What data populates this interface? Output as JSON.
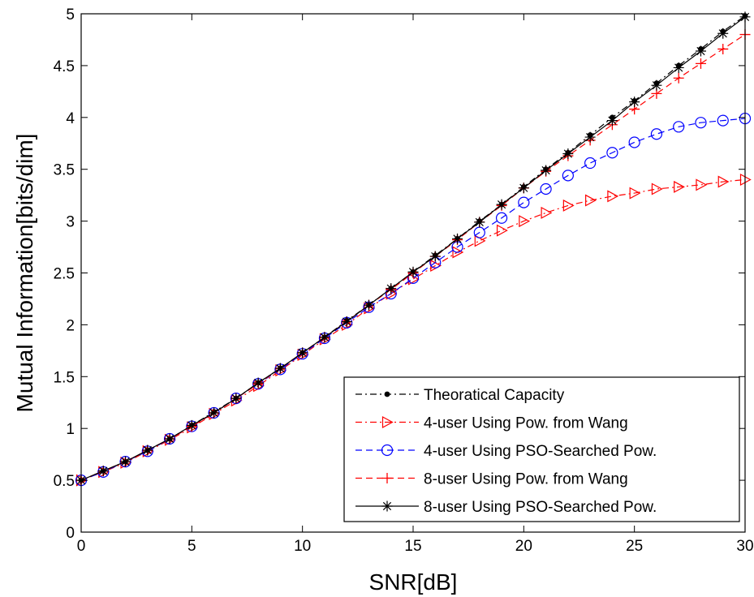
{
  "chart_data": {
    "type": "line",
    "xlabel": "SNR[dB]",
    "ylabel": "Mutual Information[bits/dim]",
    "xlim": [
      0,
      30
    ],
    "ylim": [
      0,
      5
    ],
    "xticks": [
      "0",
      "5",
      "10",
      "15",
      "20",
      "25",
      "30"
    ],
    "yticks": [
      "0",
      "0.5",
      "1",
      "1.5",
      "2",
      "2.5",
      "3",
      "3.5",
      "4",
      "4.5",
      "5"
    ],
    "grid": false,
    "legend_position": "bottom-right",
    "x": [
      0,
      1,
      2,
      3,
      4,
      5,
      6,
      7,
      8,
      9,
      10,
      11,
      12,
      13,
      14,
      15,
      16,
      17,
      18,
      19,
      20,
      21,
      22,
      23,
      24,
      25,
      26,
      27,
      28,
      29,
      30
    ],
    "series": [
      {
        "name": "Theoratical Capacity",
        "color": "#000000",
        "line_style": "dash-dot",
        "marker": "dot",
        "values": [
          0.5,
          0.59,
          0.68,
          0.79,
          0.9,
          1.03,
          1.16,
          1.29,
          1.44,
          1.58,
          1.73,
          1.88,
          2.04,
          2.19,
          2.35,
          2.51,
          2.67,
          2.83,
          3.0,
          3.16,
          3.33,
          3.5,
          3.66,
          3.83,
          4.0,
          4.16,
          4.33,
          4.5,
          4.66,
          4.83,
          4.98
        ]
      },
      {
        "name": "4-user Using Pow. from Wang",
        "color": "#ff0000",
        "line_style": "dash-dot",
        "marker": "triangle-right",
        "values": [
          0.5,
          0.58,
          0.67,
          0.78,
          0.89,
          1.01,
          1.14,
          1.27,
          1.41,
          1.56,
          1.71,
          1.86,
          2.0,
          2.16,
          2.3,
          2.44,
          2.57,
          2.7,
          2.81,
          2.91,
          3.0,
          3.08,
          3.15,
          3.2,
          3.24,
          3.27,
          3.31,
          3.33,
          3.35,
          3.38,
          3.4
        ]
      },
      {
        "name": "4-user Using PSO-Searched Pow.",
        "color": "#0000ff",
        "line_style": "dashed",
        "marker": "circle",
        "values": [
          0.5,
          0.58,
          0.68,
          0.78,
          0.9,
          1.02,
          1.15,
          1.29,
          1.43,
          1.57,
          1.72,
          1.87,
          2.02,
          2.17,
          2.3,
          2.45,
          2.6,
          2.75,
          2.89,
          3.03,
          3.18,
          3.31,
          3.44,
          3.56,
          3.66,
          3.76,
          3.84,
          3.91,
          3.95,
          3.97,
          3.99
        ]
      },
      {
        "name": "8-user Using Pow. from Wang",
        "color": "#ff0000",
        "line_style": "dashed",
        "marker": "plus",
        "values": [
          0.5,
          0.59,
          0.68,
          0.79,
          0.9,
          1.02,
          1.15,
          1.29,
          1.43,
          1.58,
          1.73,
          1.88,
          2.03,
          2.19,
          2.34,
          2.5,
          2.66,
          2.82,
          2.99,
          3.15,
          3.32,
          3.48,
          3.63,
          3.78,
          3.93,
          4.08,
          4.23,
          4.38,
          4.52,
          4.66,
          4.8
        ]
      },
      {
        "name": "8-user Using PSO-Searched Pow.",
        "color": "#000000",
        "line_style": "solid",
        "marker": "star",
        "values": [
          0.5,
          0.59,
          0.68,
          0.79,
          0.9,
          1.03,
          1.15,
          1.29,
          1.44,
          1.58,
          1.73,
          1.88,
          2.03,
          2.19,
          2.35,
          2.51,
          2.66,
          2.83,
          2.99,
          3.16,
          3.32,
          3.49,
          3.65,
          3.81,
          3.97,
          4.15,
          4.31,
          4.48,
          4.64,
          4.81,
          4.97
        ]
      }
    ]
  }
}
